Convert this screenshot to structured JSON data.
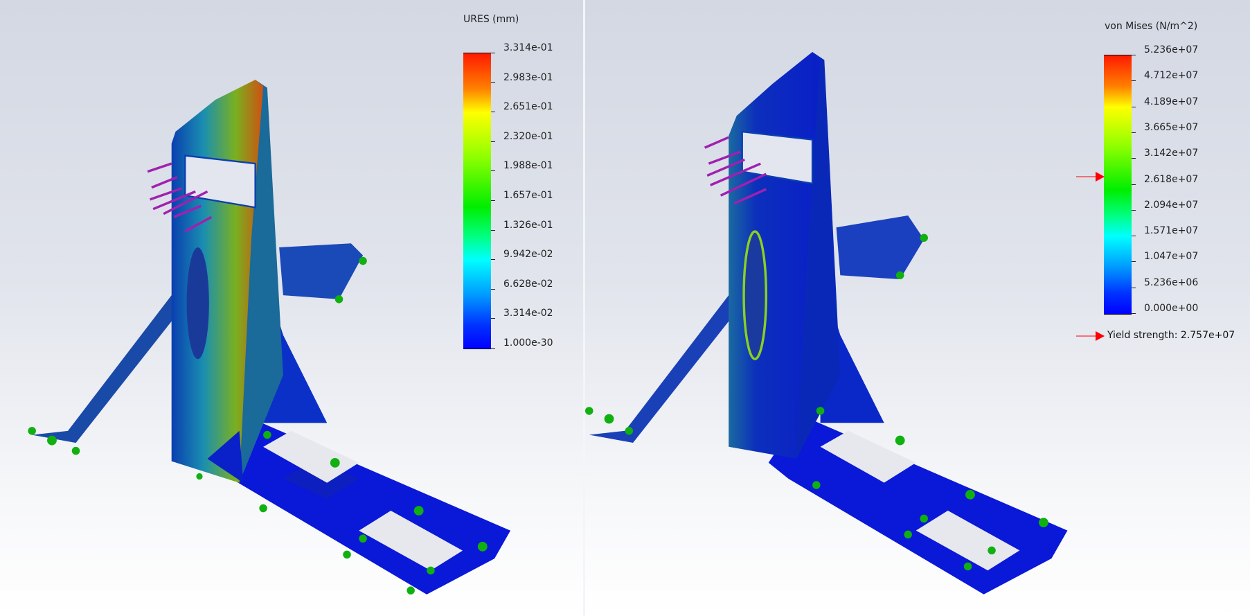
{
  "left_plot": {
    "legend_title": "URES (mm)",
    "legend_values": [
      "3.314e-01",
      "2.983e-01",
      "2.651e-01",
      "2.320e-01",
      "1.988e-01",
      "1.657e-01",
      "1.326e-01",
      "9.942e-02",
      "6.628e-02",
      "3.314e-02",
      "1.000e-30"
    ]
  },
  "right_plot": {
    "legend_title": "von Mises (N/m^2)",
    "legend_values": [
      "5.236e+07",
      "4.712e+07",
      "4.189e+07",
      "3.665e+07",
      "3.142e+07",
      "2.618e+07",
      "2.094e+07",
      "1.571e+07",
      "1.047e+07",
      "5.236e+06",
      "0.000e+00"
    ],
    "yield_label": "Yield strength: 2.757e+07",
    "yield_value": 27570000,
    "max_value": 52360000
  },
  "colors": {
    "max": "#ff0000",
    "mid": "#00ee00",
    "min": "#0000ff",
    "load_arrows": "#a020b0",
    "fixtures": "#10b010",
    "yield_marker": "#ff0000"
  },
  "icons": [
    "load-arrow-icon",
    "fixture-icon",
    "yield-marker-icon"
  ]
}
